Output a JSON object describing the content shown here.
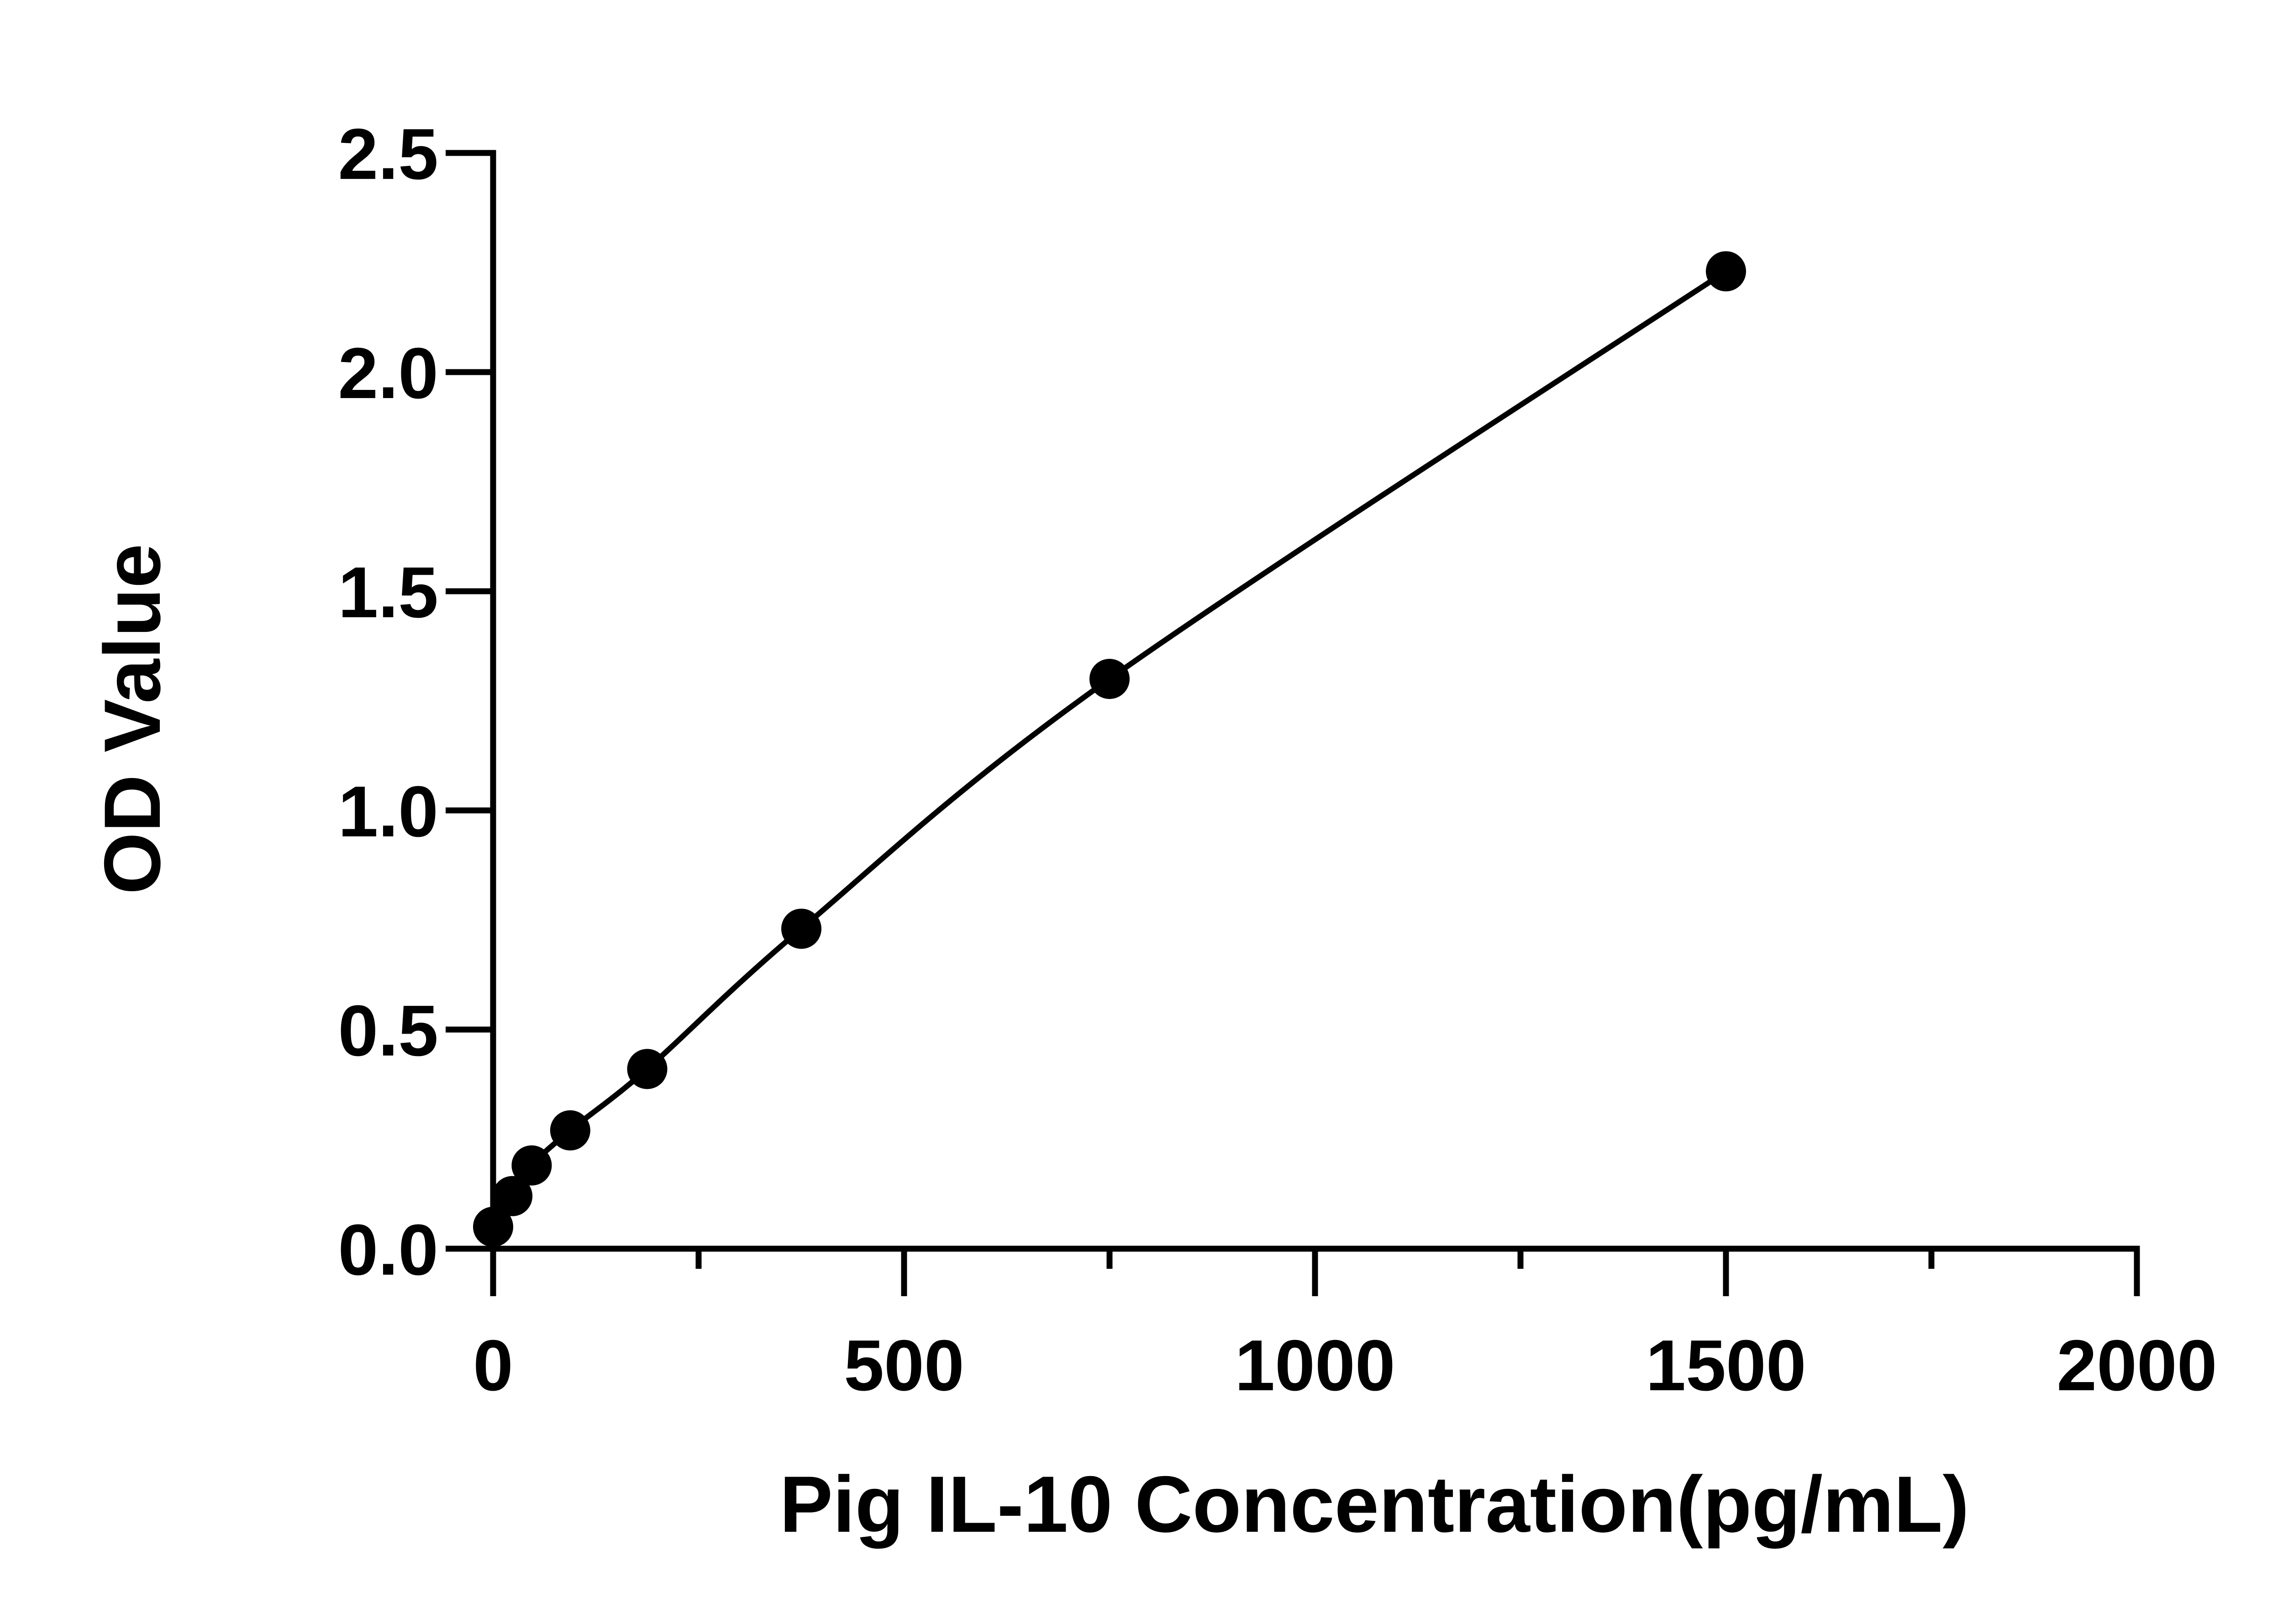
{
  "chart_data": {
    "type": "scatter",
    "title": "",
    "xlabel": "Pig IL-10 Concentration(pg/mL)",
    "ylabel": "OD Value",
    "xlim": [
      0,
      2000
    ],
    "ylim": [
      0,
      2.5
    ],
    "x_ticks": [
      0,
      500,
      1000,
      1500,
      2000
    ],
    "x_tick_labels": [
      "0",
      "500",
      "1000",
      "1500",
      "2000"
    ],
    "x_minor_ticks": [
      250,
      750,
      1250,
      1750
    ],
    "y_ticks": [
      0.0,
      0.5,
      1.0,
      1.5,
      2.0,
      2.5
    ],
    "y_tick_labels": [
      "0.0",
      "0.5",
      "1.0",
      "1.5",
      "2.0",
      "2.5"
    ],
    "grid": false,
    "legend": "none",
    "series": [
      {
        "x": [
          0,
          23.4,
          46.9,
          93.8,
          187.5,
          375,
          750,
          1500
        ],
        "y": [
          0.05,
          0.12,
          0.19,
          0.27,
          0.41,
          0.73,
          1.3,
          2.23
        ],
        "marker": "circle",
        "color": "#000000",
        "fit": "curve"
      }
    ]
  }
}
